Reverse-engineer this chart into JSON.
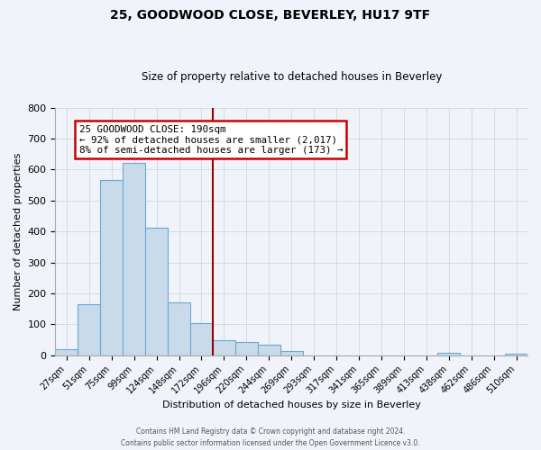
{
  "title": "25, GOODWOOD CLOSE, BEVERLEY, HU17 9TF",
  "subtitle": "Size of property relative to detached houses in Beverley",
  "xlabel": "Distribution of detached houses by size in Beverley",
  "ylabel": "Number of detached properties",
  "bin_labels": [
    "27sqm",
    "51sqm",
    "75sqm",
    "99sqm",
    "124sqm",
    "148sqm",
    "172sqm",
    "196sqm",
    "220sqm",
    "244sqm",
    "269sqm",
    "293sqm",
    "317sqm",
    "341sqm",
    "365sqm",
    "389sqm",
    "413sqm",
    "438sqm",
    "462sqm",
    "486sqm",
    "510sqm"
  ],
  "bar_heights": [
    20,
    165,
    565,
    620,
    413,
    170,
    103,
    50,
    42,
    35,
    14,
    0,
    0,
    0,
    0,
    0,
    0,
    8,
    0,
    0,
    5
  ],
  "bar_color": "#c9daea",
  "bar_edge_color": "#6aaad4",
  "vline_color": "#990000",
  "annotation_title": "25 GOODWOOD CLOSE: 190sqm",
  "annotation_line1": "← 92% of detached houses are smaller (2,017)",
  "annotation_line2": "8% of semi-detached houses are larger (173) →",
  "annotation_box_color": "#ffffff",
  "annotation_border_color": "#cc0000",
  "ylim": [
    0,
    800
  ],
  "yticks": [
    0,
    100,
    200,
    300,
    400,
    500,
    600,
    700,
    800
  ],
  "footer1": "Contains HM Land Registry data © Crown copyright and database right 2024.",
  "footer2": "Contains public sector information licensed under the Open Government Licence v3.0.",
  "bg_color": "#f0f4fa",
  "grid_color": "#d0d8e0"
}
